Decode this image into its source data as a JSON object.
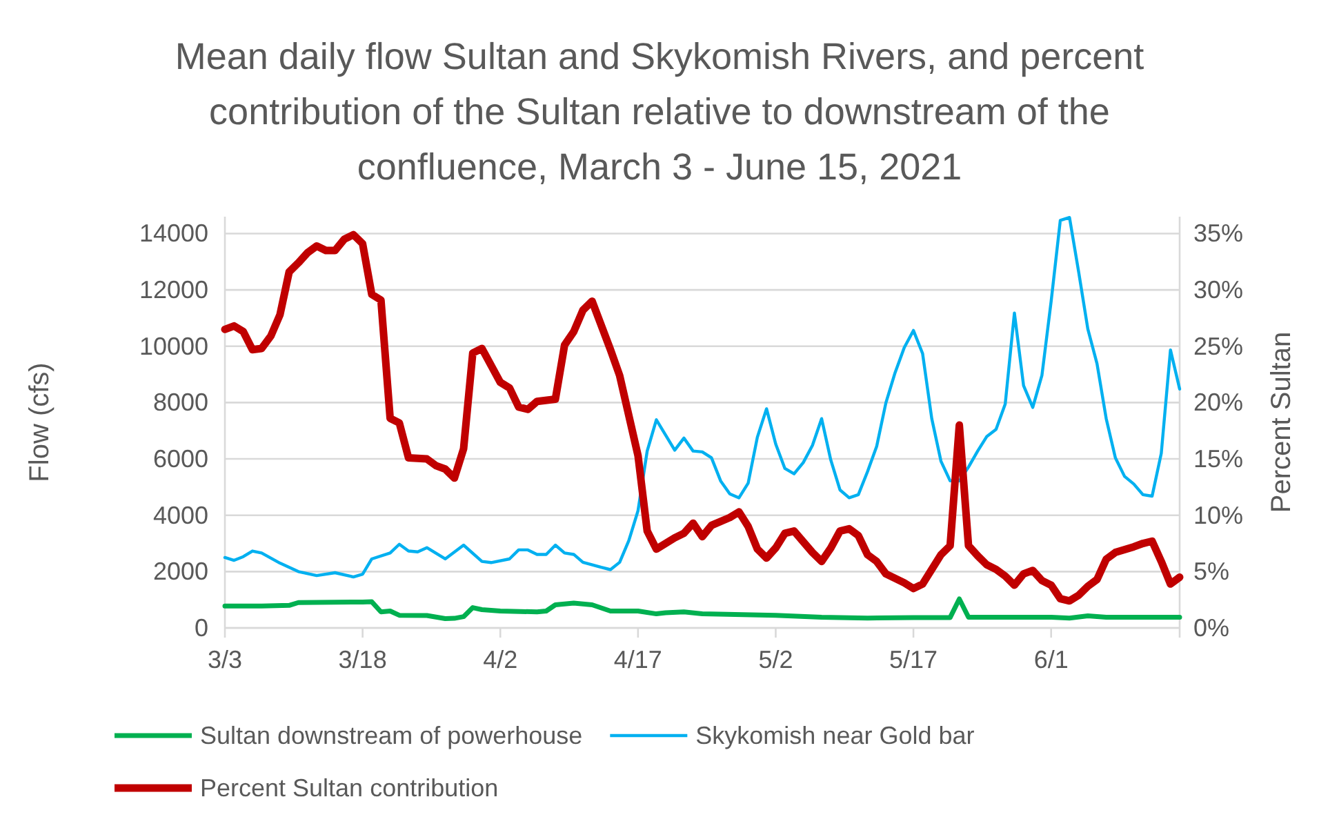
{
  "chart_data": {
    "type": "line",
    "title": "Mean daily flow Sultan and Skykomish Rivers, and percent contribution of the Sultan relative to downstream of the confluence, March 3 - June 15, 2021",
    "ylabel": "Flow (cfs)",
    "y2label": "Percent Sultan",
    "xlim": [
      "2021-03-03",
      "2021-06-15"
    ],
    "xticks": [
      {
        "value": "2021-03-03",
        "label": "3/3"
      },
      {
        "value": "2021-03-18",
        "label": "3/18"
      },
      {
        "value": "2021-04-02",
        "label": "4/2"
      },
      {
        "value": "2021-04-17",
        "label": "4/17"
      },
      {
        "value": "2021-05-02",
        "label": "5/2"
      },
      {
        "value": "2021-05-17",
        "label": "5/17"
      },
      {
        "value": "2021-06-01",
        "label": "6/1"
      }
    ],
    "ylim": [
      0,
      14600
    ],
    "yticks": [
      0,
      2000,
      4000,
      6000,
      8000,
      10000,
      12000,
      14000
    ],
    "y2lim": [
      0,
      36.5
    ],
    "y2ticks": [
      {
        "value": 0,
        "label": "0%"
      },
      {
        "value": 5,
        "label": "5%"
      },
      {
        "value": 10,
        "label": "10%"
      },
      {
        "value": 15,
        "label": "15%"
      },
      {
        "value": 20,
        "label": "20%"
      },
      {
        "value": 25,
        "label": "25%"
      },
      {
        "value": 30,
        "label": "30%"
      },
      {
        "value": 35,
        "label": "35%"
      }
    ],
    "grid": "y",
    "legend": "bottom",
    "marker": "none",
    "line_style": "solid",
    "series": [
      {
        "name": "Sultan downstream of powerhouse",
        "color": "#00b050",
        "axis": "y",
        "x": [
          "2021-03-03",
          "2021-03-07",
          "2021-03-10",
          "2021-03-11",
          "2021-03-18",
          "2021-03-19",
          "2021-03-20",
          "2021-03-21",
          "2021-03-22",
          "2021-03-25",
          "2021-03-27",
          "2021-03-28",
          "2021-03-29",
          "2021-03-30",
          "2021-03-31",
          "2021-04-02",
          "2021-04-06",
          "2021-04-07",
          "2021-04-08",
          "2021-04-10",
          "2021-04-12",
          "2021-04-14",
          "2021-04-17",
          "2021-04-19",
          "2021-04-20",
          "2021-04-22",
          "2021-04-24",
          "2021-05-02",
          "2021-05-07",
          "2021-05-12",
          "2021-05-17",
          "2021-05-21",
          "2021-05-22",
          "2021-05-23",
          "2021-06-01",
          "2021-06-03",
          "2021-06-05",
          "2021-06-07",
          "2021-06-15"
        ],
        "values": [
          780,
          780,
          800,
          900,
          920,
          930,
          570,
          600,
          450,
          440,
          330,
          340,
          400,
          720,
          650,
          600,
          570,
          600,
          820,
          880,
          820,
          600,
          600,
          500,
          540,
          570,
          500,
          450,
          380,
          350,
          370,
          370,
          1030,
          380,
          380,
          350,
          430,
          380,
          380
        ]
      },
      {
        "name": "Skykomish near Gold bar",
        "color": "#00b0f0",
        "axis": "y",
        "x": [
          "2021-03-03",
          "2021-03-04",
          "2021-03-05",
          "2021-03-06",
          "2021-03-07",
          "2021-03-09",
          "2021-03-11",
          "2021-03-13",
          "2021-03-15",
          "2021-03-17",
          "2021-03-18",
          "2021-03-19",
          "2021-03-21",
          "2021-03-22",
          "2021-03-23",
          "2021-03-24",
          "2021-03-25",
          "2021-03-27",
          "2021-03-29",
          "2021-03-31",
          "2021-04-01",
          "2021-04-03",
          "2021-04-04",
          "2021-04-05",
          "2021-04-06",
          "2021-04-07",
          "2021-04-08",
          "2021-04-09",
          "2021-04-10",
          "2021-04-11",
          "2021-04-13",
          "2021-04-14",
          "2021-04-15",
          "2021-04-16",
          "2021-04-17",
          "2021-04-18",
          "2021-04-19",
          "2021-04-20",
          "2021-04-21",
          "2021-04-22",
          "2021-04-23",
          "2021-04-24",
          "2021-04-25",
          "2021-04-26",
          "2021-04-27",
          "2021-04-28",
          "2021-04-29",
          "2021-04-30",
          "2021-05-01",
          "2021-05-02",
          "2021-05-03",
          "2021-05-04",
          "2021-05-05",
          "2021-05-06",
          "2021-05-07",
          "2021-05-08",
          "2021-05-09",
          "2021-05-10",
          "2021-05-11",
          "2021-05-12",
          "2021-05-13",
          "2021-05-14",
          "2021-05-15",
          "2021-05-16",
          "2021-05-17",
          "2021-05-18",
          "2021-05-19",
          "2021-05-20",
          "2021-05-21",
          "2021-05-22",
          "2021-05-23",
          "2021-05-24",
          "2021-05-25",
          "2021-05-26",
          "2021-05-27",
          "2021-05-28",
          "2021-05-29",
          "2021-05-30",
          "2021-05-31",
          "2021-06-01",
          "2021-06-02",
          "2021-06-03",
          "2021-06-04",
          "2021-06-05",
          "2021-06-06",
          "2021-06-07",
          "2021-06-08",
          "2021-06-09",
          "2021-06-10",
          "2021-06-11",
          "2021-06-12",
          "2021-06-13",
          "2021-06-14",
          "2021-06-15"
        ],
        "values": [
          2500,
          2400,
          2530,
          2730,
          2660,
          2300,
          2000,
          1860,
          1960,
          1810,
          1910,
          2450,
          2660,
          2970,
          2730,
          2700,
          2850,
          2450,
          2940,
          2360,
          2320,
          2450,
          2770,
          2770,
          2610,
          2610,
          2940,
          2660,
          2610,
          2330,
          2150,
          2070,
          2330,
          3100,
          4160,
          6280,
          7390,
          6850,
          6310,
          6740,
          6280,
          6250,
          6040,
          5220,
          4760,
          4620,
          5140,
          6770,
          7780,
          6530,
          5660,
          5470,
          5870,
          6480,
          7430,
          5960,
          4900,
          4620,
          4730,
          5550,
          6450,
          7990,
          9060,
          9950,
          10560,
          9740,
          7430,
          5920,
          5220,
          5220,
          5710,
          6280,
          6800,
          7050,
          7950,
          11180,
          8600,
          7830,
          8970,
          11590,
          14470,
          14570,
          12640,
          10610,
          9380,
          7430,
          6040,
          5380,
          5110,
          4730,
          4680,
          6200,
          9870,
          8480
        ]
      },
      {
        "name": "Percent Sultan contribution",
        "color": "#c00000",
        "axis": "y2",
        "x": [
          "2021-03-03",
          "2021-03-04",
          "2021-03-05",
          "2021-03-06",
          "2021-03-07",
          "2021-03-08",
          "2021-03-09",
          "2021-03-10",
          "2021-03-11",
          "2021-03-12",
          "2021-03-13",
          "2021-03-14",
          "2021-03-15",
          "2021-03-16",
          "2021-03-17",
          "2021-03-18",
          "2021-03-19",
          "2021-03-20",
          "2021-03-21",
          "2021-03-22",
          "2021-03-23",
          "2021-03-25",
          "2021-03-26",
          "2021-03-27",
          "2021-03-28",
          "2021-03-29",
          "2021-03-30",
          "2021-03-31",
          "2021-04-02",
          "2021-04-03",
          "2021-04-04",
          "2021-04-05",
          "2021-04-06",
          "2021-04-08",
          "2021-04-09",
          "2021-04-10",
          "2021-04-11",
          "2021-04-12",
          "2021-04-14",
          "2021-04-15",
          "2021-04-17",
          "2021-04-18",
          "2021-04-19",
          "2021-04-21",
          "2021-04-22",
          "2021-04-23",
          "2021-04-24",
          "2021-04-25",
          "2021-04-27",
          "2021-04-28",
          "2021-04-29",
          "2021-04-30",
          "2021-05-01",
          "2021-05-02",
          "2021-05-03",
          "2021-05-04",
          "2021-05-06",
          "2021-05-07",
          "2021-05-08",
          "2021-05-09",
          "2021-05-10",
          "2021-05-11",
          "2021-05-12",
          "2021-05-13",
          "2021-05-14",
          "2021-05-16",
          "2021-05-17",
          "2021-05-18",
          "2021-05-20",
          "2021-05-21",
          "2021-05-22",
          "2021-05-23",
          "2021-05-24",
          "2021-05-25",
          "2021-05-26",
          "2021-05-27",
          "2021-05-28",
          "2021-05-29",
          "2021-05-30",
          "2021-05-31",
          "2021-06-01",
          "2021-06-02",
          "2021-06-03",
          "2021-06-04",
          "2021-06-05",
          "2021-06-06",
          "2021-06-07",
          "2021-06-08",
          "2021-06-10",
          "2021-06-11",
          "2021-06-12",
          "2021-06-13",
          "2021-06-14",
          "2021-06-15"
        ],
        "values": [
          26.5,
          26.8,
          26.3,
          24.7,
          24.8,
          25.9,
          27.8,
          31.6,
          32.4,
          33.3,
          33.9,
          33.5,
          33.5,
          34.5,
          34.9,
          34.1,
          29.6,
          29.1,
          18.6,
          18.2,
          15.1,
          15.0,
          14.4,
          14.1,
          13.3,
          15.9,
          24.4,
          24.8,
          21.8,
          21.3,
          19.6,
          19.4,
          20.1,
          20.3,
          25.1,
          26.3,
          28.2,
          29.0,
          24.7,
          22.4,
          15.3,
          8.6,
          7.0,
          8.0,
          8.4,
          9.3,
          8.1,
          9.1,
          9.8,
          10.3,
          9.0,
          7.0,
          6.2,
          7.1,
          8.4,
          8.6,
          6.7,
          5.9,
          7.1,
          8.6,
          8.8,
          8.2,
          6.5,
          5.9,
          4.8,
          4.0,
          3.5,
          3.9,
          6.5,
          7.3,
          18.0,
          7.3,
          6.4,
          5.6,
          5.2,
          4.6,
          3.8,
          4.8,
          5.1,
          4.2,
          3.8,
          2.6,
          2.4,
          2.9,
          3.7,
          4.3,
          6.1,
          6.7,
          7.2,
          7.5,
          7.7,
          5.9,
          3.9,
          4.5
        ]
      }
    ]
  }
}
